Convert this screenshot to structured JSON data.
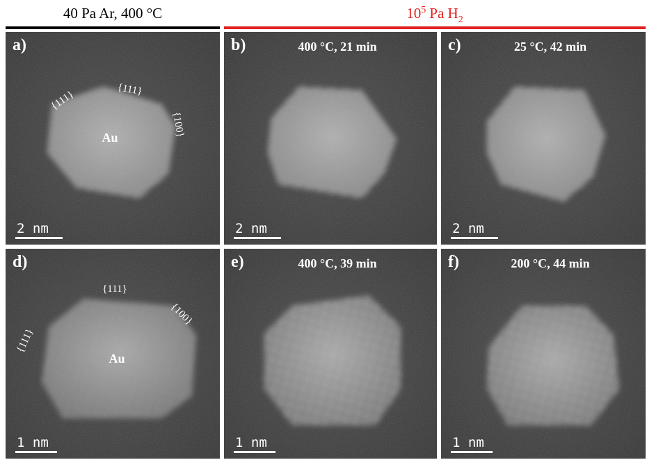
{
  "headers": {
    "left": "40 Pa Ar, 400 °C",
    "right": {
      "base": "10",
      "exponent": "5",
      "unit": "Pa H",
      "subscript": "2"
    }
  },
  "panels": [
    {
      "label": "a)",
      "facets": [
        "{111}",
        "{111}",
        "{100}"
      ],
      "particle": "Au",
      "scale": "2 nm"
    },
    {
      "label": "b)",
      "title": "400 °C, 21 min",
      "scale": "2 nm"
    },
    {
      "label": "c)",
      "title": "25 °C, 42 min",
      "scale": "2 nm"
    },
    {
      "label": "d)",
      "facets": [
        "{111}",
        "{111}",
        "{100}"
      ],
      "particle": "Au",
      "scale": "1 nm"
    },
    {
      "label": "e)",
      "title": "400 °C, 39 min",
      "scale": "1 nm"
    },
    {
      "label": "f)",
      "title": "200 °C, 44 min",
      "scale": "1 nm"
    }
  ]
}
